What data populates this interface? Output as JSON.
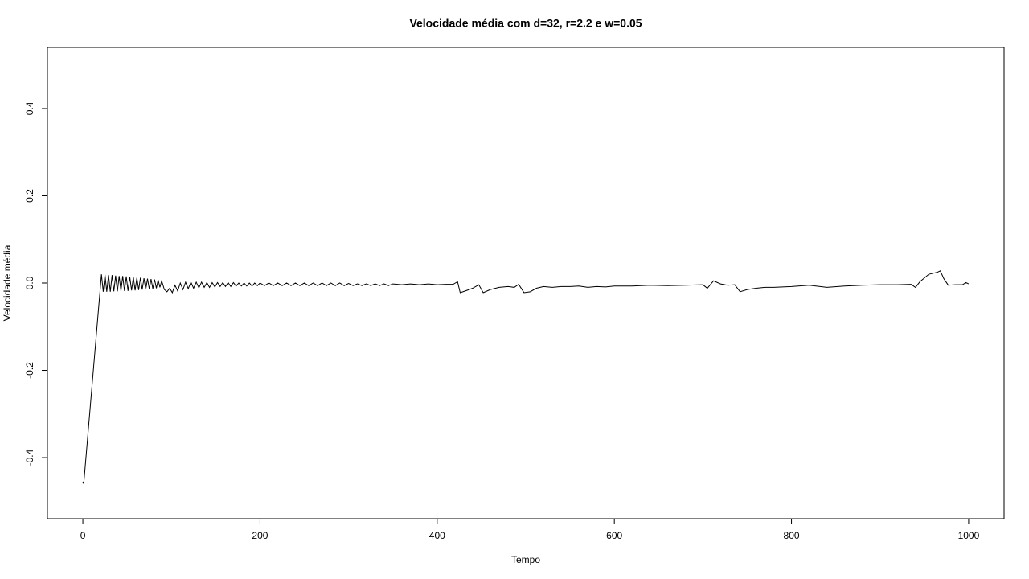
{
  "chart_data": {
    "type": "line",
    "title": "Velocidade média com d=32, r=2.2 e w=0.05",
    "x_label": "Tempo",
    "y_label": "Velocidade média",
    "xlim": [
      -40,
      1040
    ],
    "ylim": [
      -0.54,
      0.54
    ],
    "xticks": [
      0,
      200,
      400,
      600,
      800,
      1000
    ],
    "yticks": [
      -0.4,
      -0.2,
      {
        "value": 0,
        "label": "0.0"
      },
      0.2,
      0.4
    ],
    "color": "#000000",
    "x": [
      0,
      1,
      21,
      23,
      25,
      27,
      29,
      31,
      33,
      35,
      37,
      39,
      41,
      43,
      45,
      47,
      49,
      51,
      53,
      55,
      57,
      59,
      61,
      63,
      65,
      67,
      69,
      71,
      73,
      75,
      77,
      79,
      81,
      83,
      85,
      87,
      89,
      92,
      95,
      98,
      101,
      104,
      107,
      110,
      113,
      116,
      119,
      122,
      125,
      128,
      131,
      134,
      137,
      140,
      143,
      146,
      149,
      152,
      155,
      158,
      161,
      164,
      167,
      170,
      173,
      176,
      179,
      182,
      185,
      188,
      191,
      194,
      197,
      200,
      205,
      210,
      215,
      220,
      225,
      230,
      235,
      240,
      245,
      250,
      255,
      260,
      265,
      270,
      275,
      280,
      285,
      290,
      295,
      300,
      305,
      310,
      315,
      320,
      325,
      330,
      335,
      340,
      345,
      350,
      360,
      370,
      380,
      390,
      400,
      410,
      418,
      423,
      426,
      432,
      440,
      447,
      452,
      460,
      470,
      480,
      487,
      492,
      498,
      505,
      512,
      520,
      530,
      540,
      550,
      560,
      570,
      580,
      590,
      600,
      620,
      640,
      660,
      680,
      700,
      705,
      712,
      720,
      728,
      736,
      742,
      750,
      760,
      770,
      780,
      790,
      800,
      820,
      840,
      860,
      880,
      900,
      920,
      935,
      940,
      945,
      955,
      965,
      968,
      972,
      977,
      985,
      993,
      997,
      1000
    ],
    "values": [
      -0.455,
      -0.46,
      0.02,
      -0.02,
      0.019,
      -0.02,
      0.018,
      -0.02,
      0.018,
      -0.019,
      0.017,
      -0.019,
      0.016,
      -0.018,
      0.016,
      -0.018,
      0.015,
      -0.018,
      0.014,
      -0.017,
      0.013,
      -0.017,
      0.012,
      -0.016,
      0.012,
      -0.015,
      0.011,
      -0.015,
      0.01,
      -0.014,
      0.009,
      -0.013,
      0.008,
      -0.012,
      0.007,
      -0.01,
      0.005,
      -0.015,
      -0.02,
      -0.012,
      -0.022,
      -0.005,
      -0.018,
      0,
      -0.015,
      0.002,
      -0.013,
      0.002,
      -0.012,
      0.002,
      -0.011,
      0.002,
      -0.01,
      0.001,
      -0.01,
      0.001,
      -0.009,
      0.001,
      -0.008,
      0.001,
      -0.008,
      0.001,
      -0.008,
      0.001,
      -0.007,
      0,
      -0.007,
      0,
      -0.007,
      0,
      -0.007,
      0,
      -0.006,
      0,
      -0.006,
      0,
      -0.006,
      0,
      -0.006,
      0,
      -0.006,
      0,
      -0.006,
      0,
      -0.006,
      0,
      -0.006,
      0,
      -0.006,
      0,
      -0.006,
      0,
      -0.006,
      -0.001,
      -0.006,
      -0.002,
      -0.006,
      -0.002,
      -0.006,
      -0.002,
      -0.006,
      -0.002,
      -0.006,
      -0.002,
      -0.004,
      -0.002,
      -0.004,
      -0.002,
      -0.004,
      -0.003,
      -0.003,
      0.003,
      -0.022,
      -0.018,
      -0.012,
      -0.004,
      -0.022,
      -0.015,
      -0.01,
      -0.008,
      -0.01,
      -0.003,
      -0.022,
      -0.02,
      -0.012,
      -0.008,
      -0.01,
      -0.008,
      -0.008,
      -0.007,
      -0.01,
      -0.008,
      -0.009,
      -0.007,
      -0.007,
      -0.005,
      -0.006,
      -0.005,
      -0.004,
      -0.012,
      0.005,
      -0.002,
      -0.005,
      -0.004,
      -0.02,
      -0.015,
      -0.012,
      -0.01,
      -0.01,
      -0.009,
      -0.008,
      -0.005,
      -0.01,
      -0.007,
      -0.005,
      -0.004,
      -0.004,
      -0.003,
      -0.01,
      0.003,
      0.02,
      0.025,
      0.028,
      0.01,
      -0.005,
      -0.004,
      -0.004,
      0.001,
      -0.002
    ]
  }
}
